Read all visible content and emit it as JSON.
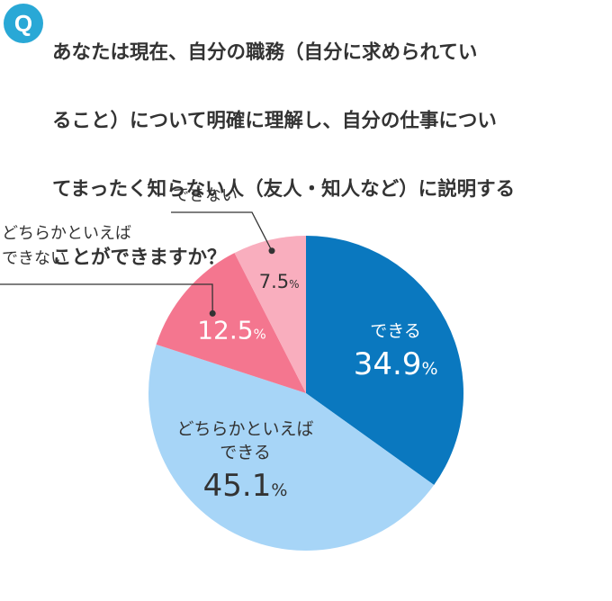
{
  "question": {
    "badge": "Q",
    "text": "あなたは現在、自分の職務（自分に求められているること）について明確に理解し、自分の仕事についてまったく知らない人（友人・知人など）に説明することができますか？"
  },
  "question_lines": [
    "あなたは現在、自分の職務（自分に求められてい",
    "ること）について明確に理解し、自分の仕事につい",
    "てまったく知らない人（友人・知人など）に説明する",
    "ことができますか？"
  ],
  "chart_data": {
    "type": "pie",
    "categories": [
      "できる",
      "どちらかといえばできる",
      "どちらかといえばできない",
      "できない"
    ],
    "values": [
      34.9,
      45.1,
      12.5,
      7.5
    ],
    "labels": [
      "できる",
      "どちらかといえば\nできる",
      "どちらかといえば\nできない",
      "できない"
    ],
    "value_labels": [
      "34.9",
      "45.1",
      "12.5",
      "7.5"
    ],
    "unit": "%",
    "colors": [
      "#0a78bf",
      "#a7d5f7",
      "#f4768f",
      "#f9aebe"
    ],
    "start_angle_deg": 0,
    "direction": "clockwise"
  }
}
